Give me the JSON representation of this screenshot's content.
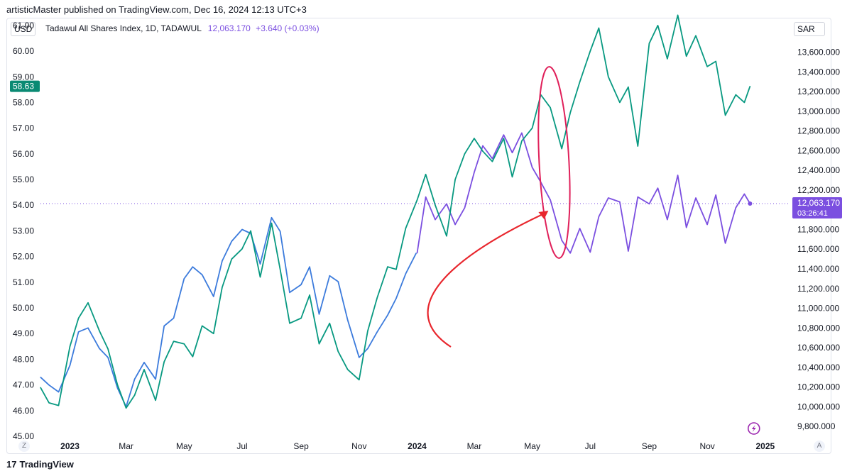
{
  "header": {
    "published_text": "artisticMaster published on TradingView.com, Dec 16, 2024 12:13 UTC+3"
  },
  "legend": {
    "left_currency": "USD",
    "right_currency": "SAR",
    "symbol": "Tadawul All Shares Index, 1D, TADAWUL",
    "last_value": "12,063.170",
    "change": "+3.640 (+0.03%)"
  },
  "footer": {
    "brand": "TradingView",
    "logo_glyph": "17"
  },
  "corner_buttons": {
    "left": "Z",
    "right": "A"
  },
  "colors": {
    "green": "#089981",
    "purple": "#7b4fe0",
    "blue": "#3c7bdc",
    "annotation": "#e8262d",
    "oval": "#e0205a",
    "badge_green": "#0a8a73"
  },
  "chart_data": {
    "type": "line",
    "title": "Tadawul All Shares Index, 1D, TADAWUL",
    "xlabel": "",
    "ylabel_left": "USD",
    "ylabel_right": "SAR",
    "ylim_left": [
      45,
      61.3
    ],
    "ylim_right": [
      9700,
      13950
    ],
    "x_range": [
      "2022-12-01",
      "2025-01-25"
    ],
    "x_ticks": [
      {
        "label": "2023",
        "date": "2023-01-01",
        "bold": true
      },
      {
        "label": "Mar",
        "date": "2023-03-01"
      },
      {
        "label": "May",
        "date": "2023-05-01"
      },
      {
        "label": "Jul",
        "date": "2023-07-01"
      },
      {
        "label": "Sep",
        "date": "2023-09-01"
      },
      {
        "label": "Nov",
        "date": "2023-11-01"
      },
      {
        "label": "2024",
        "date": "2024-01-01",
        "bold": true
      },
      {
        "label": "Mar",
        "date": "2024-03-01"
      },
      {
        "label": "May",
        "date": "2024-05-01"
      },
      {
        "label": "Jul",
        "date": "2024-07-01"
      },
      {
        "label": "Sep",
        "date": "2024-09-01"
      },
      {
        "label": "Nov",
        "date": "2024-11-01"
      },
      {
        "label": "2025",
        "date": "2025-01-01",
        "bold": true
      }
    ],
    "left_ticks": [
      "61.00",
      "60.00",
      "59.00",
      "58.00",
      "57.00",
      "56.00",
      "55.00",
      "54.00",
      "53.00",
      "52.00",
      "51.00",
      "50.00",
      "49.00",
      "48.00",
      "47.00",
      "46.00",
      "45.00"
    ],
    "right_ticks": [
      "13,600.000",
      "13,400.000",
      "13,200.000",
      "13,000.000",
      "12,800.000",
      "12,600.000",
      "12,400.000",
      "12,200.000",
      "11,800.000",
      "11,600.000",
      "11,400.000",
      "11,200.000",
      "11,000.000",
      "10,800.000",
      "10,600.000",
      "10,400.000",
      "10,200.000",
      "10,000.000",
      "9,800.000"
    ],
    "badge_left": "58.63",
    "badge_right": {
      "price": "12,063.170",
      "countdown": "03:26:41"
    },
    "series": [
      {
        "name": "Tadawul index (SAR, right axis) — before Jan 2024",
        "color": "blue",
        "axis": "right",
        "x": [
          "2022-12-01",
          "2022-12-10",
          "2022-12-20",
          "2023-01-01",
          "2023-01-10",
          "2023-01-20",
          "2023-02-01",
          "2023-02-10",
          "2023-02-20",
          "2023-03-01",
          "2023-03-10",
          "2023-03-20",
          "2023-04-01",
          "2023-04-10",
          "2023-04-20",
          "2023-05-01",
          "2023-05-10",
          "2023-05-20",
          "2023-06-01",
          "2023-06-10",
          "2023-06-20",
          "2023-07-01",
          "2023-07-10",
          "2023-07-20",
          "2023-08-01",
          "2023-08-10",
          "2023-08-20",
          "2023-09-01",
          "2023-09-10",
          "2023-09-20",
          "2023-10-01",
          "2023-10-10",
          "2023-10-20",
          "2023-11-01",
          "2023-11-10",
          "2023-11-20",
          "2023-12-01",
          "2023-12-10",
          "2023-12-20",
          "2023-12-31"
        ],
        "values": [
          10300,
          10220,
          10150,
          10420,
          10760,
          10800,
          10590,
          10500,
          10190,
          10000,
          10280,
          10450,
          10280,
          10820,
          10900,
          11300,
          11420,
          11340,
          11120,
          11480,
          11680,
          11800,
          11760,
          11450,
          11920,
          11780,
          11160,
          11240,
          11420,
          10940,
          11330,
          11270,
          10880,
          10500,
          10590,
          10760,
          10930,
          11100,
          11350,
          11560
        ]
      },
      {
        "name": "Tadawul index (SAR, right axis) — from Jan 2024",
        "color": "purple",
        "axis": "right",
        "x": [
          "2024-01-01",
          "2024-01-10",
          "2024-01-20",
          "2024-02-01",
          "2024-02-10",
          "2024-02-20",
          "2024-03-01",
          "2024-03-10",
          "2024-03-20",
          "2024-04-01",
          "2024-04-10",
          "2024-04-20",
          "2024-05-01",
          "2024-05-10",
          "2024-05-20",
          "2024-06-01",
          "2024-06-10",
          "2024-06-20",
          "2024-07-01",
          "2024-07-10",
          "2024-07-20",
          "2024-08-01",
          "2024-08-10",
          "2024-08-20",
          "2024-09-01",
          "2024-09-10",
          "2024-09-20",
          "2024-10-01",
          "2024-10-10",
          "2024-10-20",
          "2024-11-01",
          "2024-11-10",
          "2024-11-20",
          "2024-12-01",
          "2024-12-10",
          "2024-12-16"
        ],
        "values": [
          11560,
          12130,
          11900,
          12060,
          11850,
          12020,
          12380,
          12650,
          12520,
          12760,
          12580,
          12780,
          12430,
          12280,
          12100,
          11690,
          11560,
          11810,
          11570,
          11930,
          12120,
          12080,
          11580,
          12130,
          12060,
          12220,
          11900,
          12350,
          11820,
          12120,
          11850,
          12150,
          11660,
          12020,
          12160,
          12063
        ]
      },
      {
        "name": "Index in USD (left axis)",
        "color": "green",
        "axis": "left",
        "x": [
          "2022-12-01",
          "2022-12-10",
          "2022-12-20",
          "2023-01-01",
          "2023-01-10",
          "2023-01-20",
          "2023-02-01",
          "2023-02-10",
          "2023-02-20",
          "2023-03-01",
          "2023-03-10",
          "2023-03-20",
          "2023-04-01",
          "2023-04-10",
          "2023-04-20",
          "2023-05-01",
          "2023-05-10",
          "2023-05-20",
          "2023-06-01",
          "2023-06-10",
          "2023-06-20",
          "2023-07-01",
          "2023-07-10",
          "2023-07-20",
          "2023-08-01",
          "2023-08-10",
          "2023-08-20",
          "2023-09-01",
          "2023-09-10",
          "2023-09-20",
          "2023-10-01",
          "2023-10-10",
          "2023-10-20",
          "2023-11-01",
          "2023-11-10",
          "2023-11-20",
          "2023-12-01",
          "2023-12-10",
          "2023-12-20",
          "2024-01-01",
          "2024-01-10",
          "2024-01-20",
          "2024-02-01",
          "2024-02-10",
          "2024-02-20",
          "2024-03-01",
          "2024-03-10",
          "2024-03-20",
          "2024-04-01",
          "2024-04-10",
          "2024-04-20",
          "2024-05-01",
          "2024-05-10",
          "2024-05-20",
          "2024-06-01",
          "2024-06-10",
          "2024-06-20",
          "2024-07-01",
          "2024-07-10",
          "2024-07-20",
          "2024-08-01",
          "2024-08-10",
          "2024-08-20",
          "2024-09-01",
          "2024-09-10",
          "2024-09-20",
          "2024-10-01",
          "2024-10-10",
          "2024-10-20",
          "2024-11-01",
          "2024-11-10",
          "2024-11-20",
          "2024-12-01",
          "2024-12-10",
          "2024-12-16"
        ],
        "values": [
          46.9,
          46.3,
          46.2,
          48.5,
          49.6,
          50.2,
          49.1,
          48.4,
          47.0,
          46.1,
          46.6,
          47.6,
          46.4,
          47.9,
          48.7,
          48.6,
          48.1,
          49.3,
          49.0,
          50.8,
          51.9,
          52.3,
          53.0,
          51.2,
          53.3,
          51.5,
          49.4,
          49.6,
          50.5,
          48.6,
          49.4,
          48.3,
          47.6,
          47.2,
          49.1,
          50.4,
          51.6,
          51.5,
          53.1,
          54.2,
          55.2,
          54.0,
          52.8,
          55.0,
          56.0,
          56.6,
          56.1,
          55.7,
          56.6,
          55.1,
          56.5,
          57.0,
          58.3,
          57.8,
          56.2,
          57.6,
          58.8,
          60.0,
          60.9,
          59.0,
          58.0,
          58.6,
          56.3,
          60.3,
          61.0,
          59.7,
          61.4,
          59.8,
          60.6,
          59.4,
          59.6,
          57.5,
          58.3,
          58.0,
          58.63
        ]
      }
    ],
    "annotations": [
      {
        "type": "ellipse",
        "center_date": "2024-05-24",
        "description": "circled divergence area"
      },
      {
        "type": "curved-arrow",
        "target_date": "2024-05-18",
        "description": "arrow pointing to divergence"
      }
    ]
  }
}
